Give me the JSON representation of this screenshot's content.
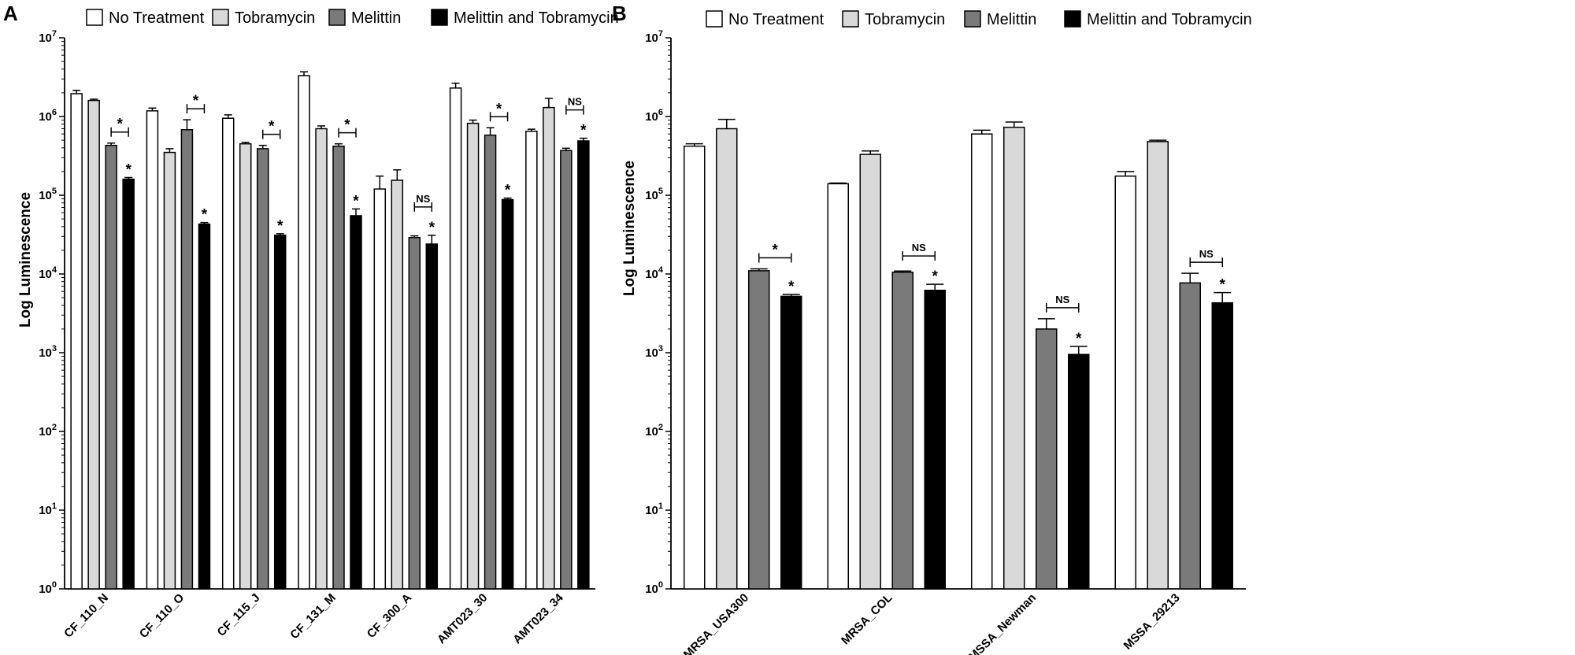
{
  "chart_data": [
    {
      "panel": "A",
      "type": "bar",
      "scale": "log",
      "ylabel": "Log Luminescence",
      "xlabel": "",
      "ylim": [
        1,
        10000000
      ],
      "yticks": [
        {
          "value": 1,
          "base": "10",
          "exp": "0"
        },
        {
          "value": 10,
          "base": "10",
          "exp": "1"
        },
        {
          "value": 100,
          "base": "10",
          "exp": "2"
        },
        {
          "value": 1000,
          "base": "10",
          "exp": "3"
        },
        {
          "value": 10000,
          "base": "10",
          "exp": "4"
        },
        {
          "value": 100000,
          "base": "10",
          "exp": "5"
        },
        {
          "value": 1000000,
          "base": "10",
          "exp": "6"
        },
        {
          "value": 10000000,
          "base": "10",
          "exp": "7"
        }
      ],
      "legend": [
        "No Treatment",
        "Tobramycin",
        "Melittin",
        "Melittin and Tobramycin"
      ],
      "categories": [
        "CF_110_N",
        "CF_110_O",
        "CF_115_J",
        "CF_131_M",
        "CF_300_A",
        "AMT023_30",
        "AMT023_34"
      ],
      "series": [
        {
          "name": "No Treatment",
          "color": "#ffffff",
          "values": [
            1950000,
            1180000,
            950000,
            3300000,
            120000,
            2300000,
            650000
          ],
          "errors": [
            200000,
            100000,
            100000,
            400000,
            55000,
            350000,
            40000
          ]
        },
        {
          "name": "Tobramycin",
          "color": "#d9d9d9",
          "values": [
            1600000,
            350000,
            450000,
            700000,
            155000,
            820000,
            1300000
          ],
          "errors": [
            60000,
            40000,
            20000,
            60000,
            55000,
            80000,
            400000
          ]
        },
        {
          "name": "Melittin",
          "color": "#7a7a7a",
          "values": [
            430000,
            680000,
            390000,
            420000,
            29000,
            580000,
            370000
          ],
          "errors": [
            30000,
            230000,
            40000,
            30000,
            1500,
            140000,
            25000
          ]
        },
        {
          "name": "Melittin and Tobramycin",
          "color": "#000000",
          "values": [
            160000,
            43000,
            31000,
            55000,
            24000,
            88000,
            490000
          ],
          "errors": [
            8000,
            2000,
            1500,
            12000,
            7000,
            4000,
            40000
          ]
        }
      ],
      "annotations": [
        {
          "category": 0,
          "bracket": "*",
          "bar_star": "*"
        },
        {
          "category": 1,
          "bracket": "*",
          "bar_star": "*"
        },
        {
          "category": 2,
          "bracket": "*",
          "bar_star": "*"
        },
        {
          "category": 3,
          "bracket": "*",
          "bar_star": "*"
        },
        {
          "category": 4,
          "bracket": "NS",
          "bar_star": "*"
        },
        {
          "category": 5,
          "bracket": "*",
          "bar_star": "*"
        },
        {
          "category": 6,
          "bracket": "NS",
          "bar_star": "*"
        }
      ]
    },
    {
      "panel": "B",
      "type": "bar",
      "scale": "log",
      "ylabel": "Log Luminescence",
      "xlabel": "",
      "ylim": [
        1,
        10000000
      ],
      "yticks": [
        {
          "value": 1,
          "base": "10",
          "exp": "0"
        },
        {
          "value": 10,
          "base": "10",
          "exp": "1"
        },
        {
          "value": 100,
          "base": "10",
          "exp": "2"
        },
        {
          "value": 1000,
          "base": "10",
          "exp": "3"
        },
        {
          "value": 10000,
          "base": "10",
          "exp": "4"
        },
        {
          "value": 100000,
          "base": "10",
          "exp": "5"
        },
        {
          "value": 1000000,
          "base": "10",
          "exp": "6"
        },
        {
          "value": 10000000,
          "base": "10",
          "exp": "7"
        }
      ],
      "legend": [
        "No Treatment",
        "Tobramycin",
        "Melittin",
        "Melittin and Tobramycin"
      ],
      "categories": [
        "MRSA_USA300",
        "MRSA_COL",
        "MSSA_Newman",
        "MSSA_29213"
      ],
      "series": [
        {
          "name": "No Treatment",
          "color": "#ffffff",
          "values": [
            420000,
            140000,
            600000,
            175000
          ],
          "errors": [
            30000,
            3000,
            70000,
            25000
          ]
        },
        {
          "name": "Tobramycin",
          "color": "#d9d9d9",
          "values": [
            700000,
            330000,
            730000,
            480000
          ],
          "errors": [
            220000,
            35000,
            120000,
            20000
          ]
        },
        {
          "name": "Melittin",
          "color": "#7a7a7a",
          "values": [
            11000,
            10500,
            2000,
            7700
          ],
          "errors": [
            600,
            400,
            700,
            2500
          ]
        },
        {
          "name": "Melittin and Tobramycin",
          "color": "#000000",
          "values": [
            5200,
            6200,
            950,
            4300
          ],
          "errors": [
            300,
            1200,
            250,
            1500
          ]
        }
      ],
      "annotations": [
        {
          "category": 0,
          "bracket": "*",
          "bar_star": "*"
        },
        {
          "category": 1,
          "bracket": "NS",
          "bar_star": "*"
        },
        {
          "category": 2,
          "bracket": "NS",
          "bar_star": "*"
        },
        {
          "category": 3,
          "bracket": "NS",
          "bar_star": "*"
        }
      ]
    }
  ]
}
